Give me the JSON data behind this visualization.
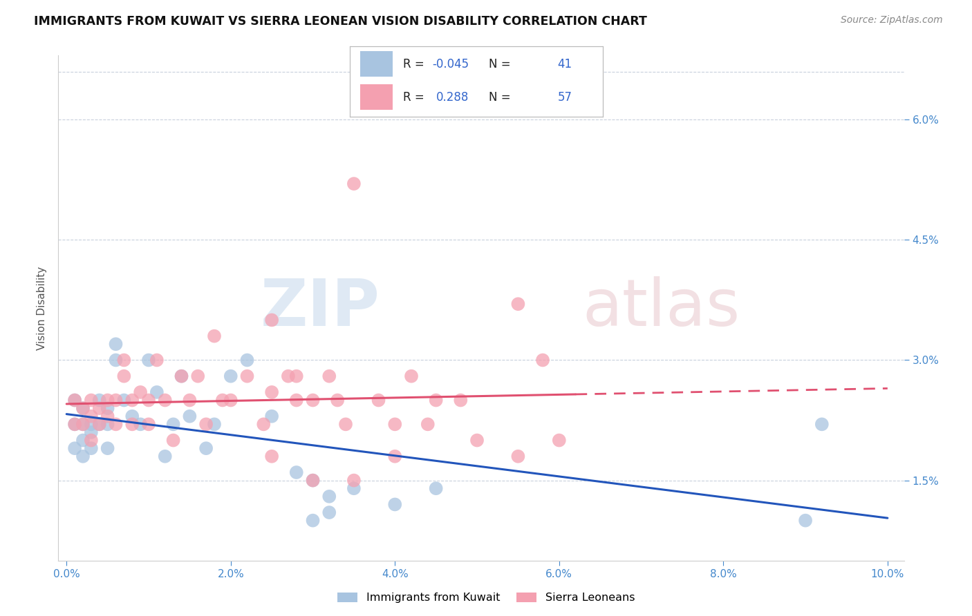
{
  "title": "IMMIGRANTS FROM KUWAIT VS SIERRA LEONEAN VISION DISABILITY CORRELATION CHART",
  "source": "Source: ZipAtlas.com",
  "ylabel": "Vision Disability",
  "xlim": [
    0.0,
    0.1
  ],
  "ylim": [
    0.005,
    0.068
  ],
  "right_yticks": [
    0.015,
    0.03,
    0.045,
    0.06
  ],
  "right_ytick_labels": [
    "1.5%",
    "3.0%",
    "4.5%",
    "6.0%"
  ],
  "xticks": [
    0.0,
    0.02,
    0.04,
    0.06,
    0.08,
    0.1
  ],
  "xtick_labels": [
    "0.0%",
    "2.0%",
    "4.0%",
    "6.0%",
    "8.0%",
    "10.0%"
  ],
  "kuwait_R": -0.045,
  "kuwait_N": 41,
  "sierra_R": 0.288,
  "sierra_N": 57,
  "kuwait_color": "#a8c4e0",
  "sierra_color": "#f4a0b0",
  "kuwait_line_color": "#2255bb",
  "sierra_line_color": "#e05070",
  "watermark_zip": "ZIP",
  "watermark_atlas": "atlas",
  "legend_label_kuwait": "Immigrants from Kuwait",
  "legend_label_sierra": "Sierra Leoneans",
  "kuwait_x": [
    0.001,
    0.001,
    0.001,
    0.002,
    0.002,
    0.002,
    0.002,
    0.003,
    0.003,
    0.003,
    0.004,
    0.004,
    0.005,
    0.005,
    0.005,
    0.006,
    0.006,
    0.007,
    0.008,
    0.009,
    0.01,
    0.011,
    0.012,
    0.013,
    0.014,
    0.015,
    0.017,
    0.018,
    0.02,
    0.022,
    0.025,
    0.028,
    0.03,
    0.032,
    0.035,
    0.04,
    0.045,
    0.03,
    0.032,
    0.09,
    0.092
  ],
  "kuwait_y": [
    0.025,
    0.022,
    0.019,
    0.024,
    0.022,
    0.02,
    0.018,
    0.022,
    0.021,
    0.019,
    0.025,
    0.022,
    0.024,
    0.022,
    0.019,
    0.032,
    0.03,
    0.025,
    0.023,
    0.022,
    0.03,
    0.026,
    0.018,
    0.022,
    0.028,
    0.023,
    0.019,
    0.022,
    0.028,
    0.03,
    0.023,
    0.016,
    0.015,
    0.013,
    0.014,
    0.012,
    0.014,
    0.01,
    0.011,
    0.01,
    0.022
  ],
  "sierra_x": [
    0.001,
    0.001,
    0.002,
    0.002,
    0.003,
    0.003,
    0.003,
    0.004,
    0.004,
    0.005,
    0.005,
    0.006,
    0.006,
    0.007,
    0.007,
    0.008,
    0.008,
    0.009,
    0.01,
    0.01,
    0.011,
    0.012,
    0.013,
    0.014,
    0.015,
    0.016,
    0.017,
    0.018,
    0.019,
    0.02,
    0.022,
    0.024,
    0.025,
    0.027,
    0.028,
    0.03,
    0.032,
    0.034,
    0.035,
    0.038,
    0.04,
    0.042,
    0.044,
    0.048,
    0.05,
    0.055,
    0.058,
    0.06,
    0.025,
    0.03,
    0.035,
    0.04,
    0.045,
    0.025,
    0.028,
    0.033,
    0.055
  ],
  "sierra_y": [
    0.025,
    0.022,
    0.024,
    0.022,
    0.025,
    0.023,
    0.02,
    0.024,
    0.022,
    0.025,
    0.023,
    0.022,
    0.025,
    0.028,
    0.03,
    0.025,
    0.022,
    0.026,
    0.025,
    0.022,
    0.03,
    0.025,
    0.02,
    0.028,
    0.025,
    0.028,
    0.022,
    0.033,
    0.025,
    0.025,
    0.028,
    0.022,
    0.026,
    0.028,
    0.025,
    0.025,
    0.028,
    0.022,
    0.052,
    0.025,
    0.022,
    0.028,
    0.022,
    0.025,
    0.02,
    0.018,
    0.03,
    0.02,
    0.018,
    0.015,
    0.015,
    0.018,
    0.025,
    0.035,
    0.028,
    0.025,
    0.037
  ]
}
